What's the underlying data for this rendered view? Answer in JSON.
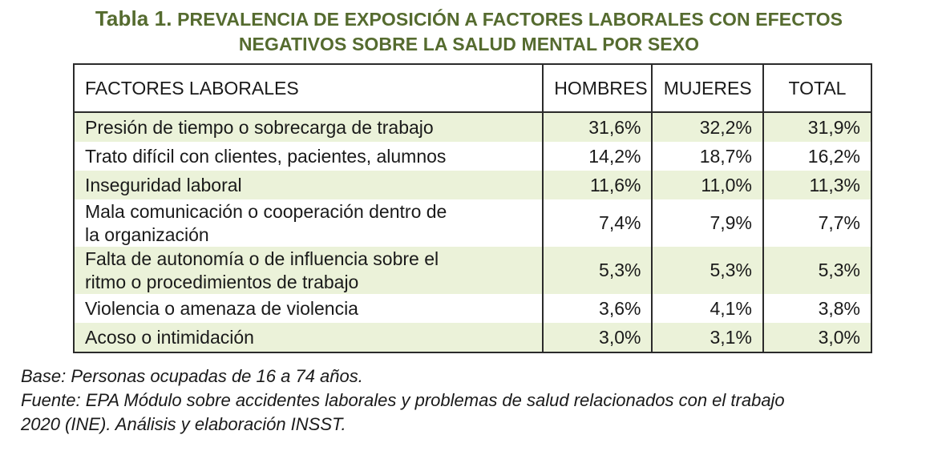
{
  "title": {
    "lead": "Tabla 1.",
    "line1_rest": "PREVALENCIA DE EXPOSICIÓN A FACTORES LABORALES CON EFECTOS",
    "line2": "NEGATIVOS SOBRE LA SALUD MENTAL POR SEXO"
  },
  "table": {
    "headers": [
      "FACTORES LABORALES",
      "HOMBRES",
      "MUJERES",
      "TOTAL"
    ],
    "rows": [
      {
        "factor": [
          "Presión de tiempo o sobrecarga de trabajo"
        ],
        "hombres": "31,6%",
        "mujeres": "32,2%",
        "total": "31,9%"
      },
      {
        "factor": [
          "Trato difícil con clientes, pacientes, alumnos"
        ],
        "hombres": "14,2%",
        "mujeres": "18,7%",
        "total": "16,2%"
      },
      {
        "factor": [
          "Inseguridad laboral"
        ],
        "hombres": "11,6%",
        "mujeres": "11,0%",
        "total": "11,3%"
      },
      {
        "factor": [
          "Mala comunicación o cooperación dentro de",
          "la organización"
        ],
        "hombres": "7,4%",
        "mujeres": "7,9%",
        "total": "7,7%"
      },
      {
        "factor": [
          "Falta de autonomía o de influencia sobre el",
          "ritmo o procedimientos de trabajo"
        ],
        "hombres": "5,3%",
        "mujeres": "5,3%",
        "total": "5,3%"
      },
      {
        "factor": [
          "Violencia o amenaza de violencia"
        ],
        "hombres": "3,6%",
        "mujeres": "4,1%",
        "total": "3,8%"
      },
      {
        "factor": [
          "Acoso o intimidación"
        ],
        "hombres": "3,0%",
        "mujeres": "3,1%",
        "total": "3,0%"
      }
    ]
  },
  "notes": {
    "base": "Base: Personas ocupadas de 16 a 74 años.",
    "source_line1": "Fuente: EPA Módulo sobre accidentes laborales y problemas de salud relacionados con el trabajo",
    "source_line2": "2020 (INE). Análisis y elaboración INSST."
  },
  "colors": {
    "title": "#556b2f",
    "row_shade": "#ebf2d9",
    "border": "#2b2b2b"
  }
}
